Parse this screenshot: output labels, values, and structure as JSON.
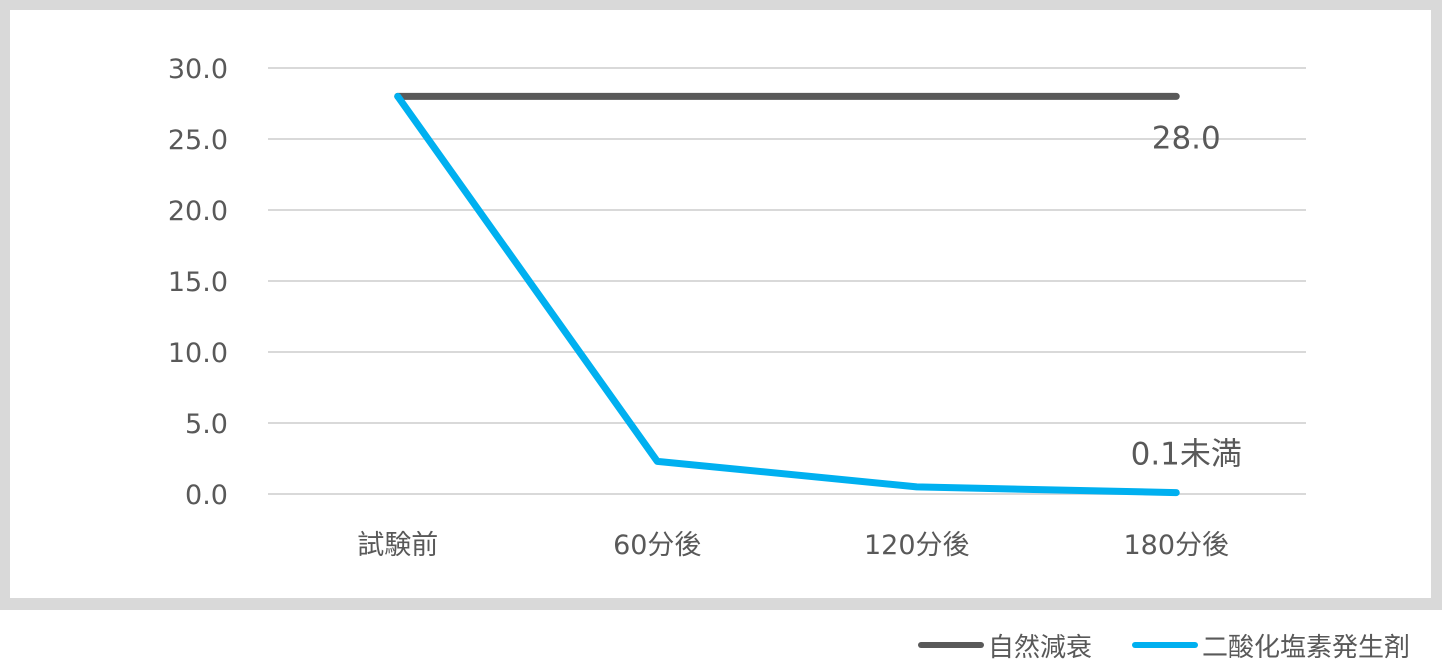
{
  "chart_data": {
    "type": "line",
    "categories": [
      "試験前",
      "60分後",
      "120分後",
      "180分後"
    ],
    "series": [
      {
        "name": "自然減衰",
        "values": [
          28.0,
          28.0,
          28.0,
          28.0
        ],
        "color": "#595959",
        "end_label": "28.0"
      },
      {
        "name": "二酸化塩素発生剤",
        "values": [
          28.0,
          2.3,
          0.5,
          0.1
        ],
        "color": "#00b0f0",
        "end_label": "0.1未満"
      }
    ],
    "ylim": [
      0,
      30
    ],
    "yticks": [
      "0.0",
      "5.0",
      "10.0",
      "15.0",
      "20.0",
      "25.0",
      "30.0"
    ],
    "ytick_values": [
      0,
      5,
      10,
      15,
      20,
      25,
      30
    ],
    "grid": true,
    "legend_position": "bottom-right",
    "xlabel": "",
    "ylabel": "",
    "title": ""
  }
}
